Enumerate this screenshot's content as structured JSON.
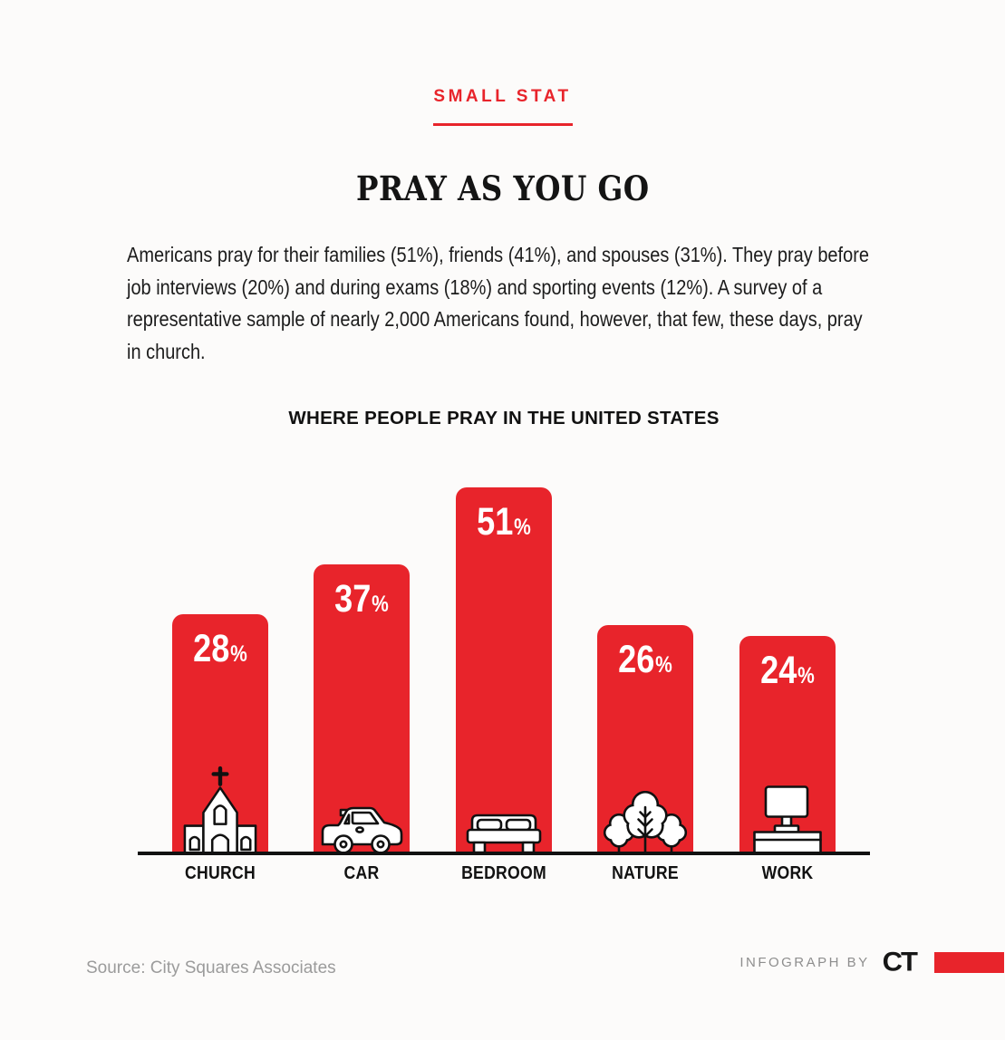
{
  "theme": {
    "accent_red": "#e8242b",
    "background": "#fcfbfa",
    "text_dark": "#1a1a1a",
    "muted_gray": "#9b9b9b"
  },
  "header": {
    "eyebrow": "SMALL STAT",
    "title": "PRAY AS YOU GO"
  },
  "intro": "Americans pray for their families (51%), friends (41%), and spouses (31%). They pray before job interviews (20%) and during exams (18%) and sporting events (12%). A survey of a representative sample of nearly 2,000 Americans found, however, that few, these days, pray in church.",
  "chart_data": {
    "type": "bar",
    "title": "WHERE PEOPLE PRAY IN THE UNITED STATES",
    "categories": [
      "CHURCH",
      "CAR",
      "BEDROOM",
      "NATURE",
      "WORK"
    ],
    "values": [
      28,
      37,
      51,
      26,
      24
    ],
    "unit": "%",
    "bar_color": "#e8242b",
    "value_label_color": "#ffffff",
    "value_label_position": "inside-top",
    "icons": [
      "church-icon",
      "car-icon",
      "bed-icon",
      "trees-icon",
      "desk-computer-icon"
    ],
    "xlabel": "",
    "ylabel": "",
    "ylim": [
      0,
      55
    ],
    "grid": false,
    "legend": false,
    "baseline_axis": true
  },
  "footer": {
    "source": "Source: City Squares Associates",
    "credit_label": "INFOGRAPH BY",
    "logo_text": "CT"
  }
}
